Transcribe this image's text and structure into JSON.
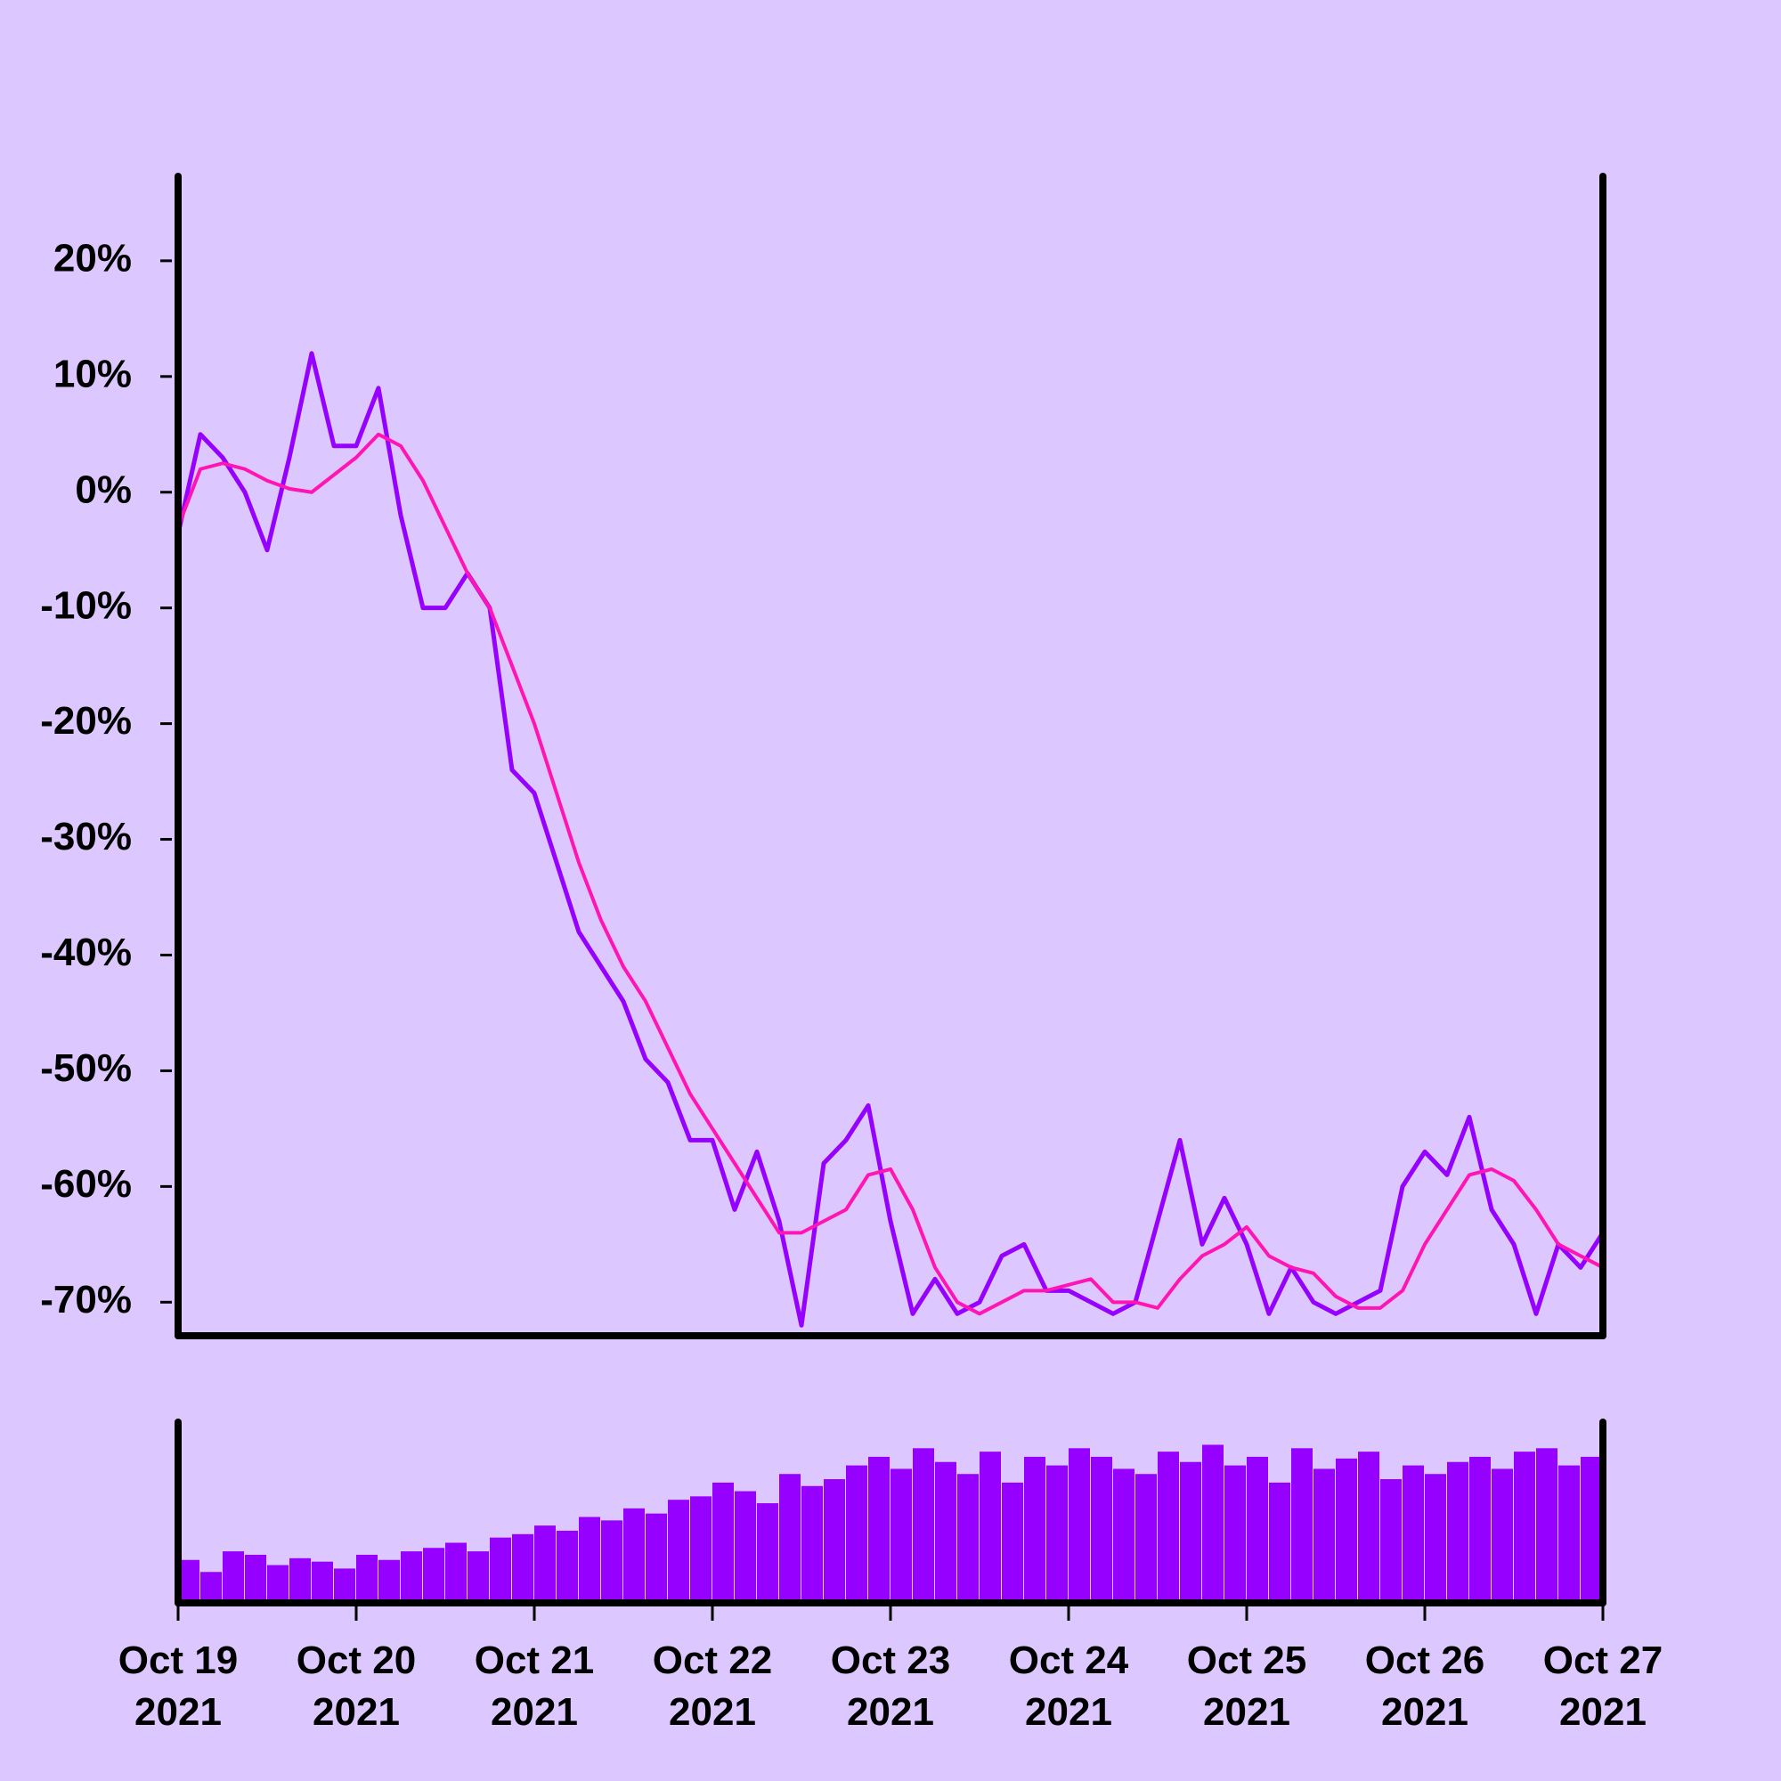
{
  "chart_data": {
    "type": "line",
    "x": [
      0,
      0.125,
      0.25,
      0.375,
      0.5,
      0.625,
      0.75,
      0.875,
      1,
      1.125,
      1.25,
      1.375,
      1.5,
      1.625,
      1.75,
      1.875,
      2,
      2.125,
      2.25,
      2.375,
      2.5,
      2.625,
      2.75,
      2.875,
      3,
      3.125,
      3.25,
      3.375,
      3.5,
      3.625,
      3.75,
      3.875,
      4,
      4.125,
      4.25,
      4.375,
      4.5,
      4.625,
      4.75,
      4.875,
      5,
      5.125,
      5.25,
      5.375,
      5.5,
      5.625,
      5.75,
      5.875,
      6,
      6.125,
      6.25,
      6.375,
      6.5,
      6.625,
      6.75,
      6.875,
      7,
      7.125,
      7.25,
      7.375,
      7.5,
      7.625,
      7.75,
      7.875,
      8
    ],
    "series": [
      {
        "color": "#9500ff",
        "values": [
          -3.6,
          5,
          3,
          0,
          -5,
          3,
          12,
          4,
          4,
          9,
          -2,
          -10,
          -10,
          -7,
          -10,
          -24,
          -26,
          -32,
          -38,
          -41,
          -44,
          -49,
          -51,
          -56,
          -56,
          -62,
          -57,
          -63,
          -72,
          -58,
          -56,
          -53,
          -63,
          -71,
          -68,
          -71,
          -70,
          -66,
          -65,
          -69,
          -69,
          -70,
          -71,
          -70,
          -63,
          -56,
          -65,
          -61,
          -65,
          -71,
          -67,
          -70,
          -71,
          -70,
          -69,
          -60,
          -57,
          -59,
          -54,
          -62,
          -65,
          -71,
          -65,
          -67,
          -64
        ]
      },
      {
        "color": "#ff14b4",
        "values": [
          -3,
          2,
          2.5,
          2,
          1,
          0.3,
          0,
          1.5,
          3,
          5,
          4,
          1,
          -3,
          -7,
          -10,
          -15,
          -20,
          -26,
          -32,
          -37,
          -41,
          -44,
          -48,
          -52,
          -55,
          -58,
          -61,
          -64,
          -64,
          -63,
          -62,
          -59,
          -58.5,
          -62,
          -67,
          -70,
          -71,
          -70,
          -69,
          -69,
          -68.5,
          -68,
          -70,
          -70,
          -70.5,
          -68,
          -66,
          -65,
          -63.5,
          -66,
          -67,
          -67.5,
          -69.5,
          -70.5,
          -70.5,
          -69,
          -65,
          -62,
          -59,
          -58.5,
          -59.5,
          -62,
          -65,
          -66,
          -67
        ]
      }
    ],
    "volume": {
      "color": "#9500ff",
      "ylim": [
        0,
        100
      ],
      "values": [
        20,
        25,
        18,
        30,
        28,
        22,
        26,
        24,
        20,
        28,
        25,
        30,
        32,
        35,
        30,
        38,
        40,
        45,
        42,
        50,
        48,
        55,
        52,
        60,
        62,
        70,
        65,
        58,
        75,
        68,
        72,
        80,
        85,
        78,
        90,
        82,
        75,
        88,
        70,
        85,
        80,
        90,
        85,
        78,
        75,
        88,
        82,
        92,
        80,
        85,
        70,
        90,
        78,
        84,
        88,
        72,
        80,
        75,
        82,
        85,
        78,
        88,
        90,
        80,
        85
      ]
    },
    "xlim": [
      0,
      8
    ],
    "xticks": [
      {
        "value": 0,
        "label": "Oct 19\n2021"
      },
      {
        "value": 1,
        "label": "Oct 20\n2021"
      },
      {
        "value": 2,
        "label": "Oct 21\n2021"
      },
      {
        "value": 3,
        "label": "Oct 22\n2021"
      },
      {
        "value": 4,
        "label": "Oct 23\n2021"
      },
      {
        "value": 5,
        "label": "Oct 24\n2021"
      },
      {
        "value": 6,
        "label": "Oct 25\n2021"
      },
      {
        "value": 7,
        "label": "Oct 26\n2021"
      },
      {
        "value": 8,
        "label": "Oct 27\n2021"
      }
    ],
    "ylim": [
      -72.9,
      27.3
    ],
    "yticks": [
      {
        "value": 20,
        "label": "20%"
      },
      {
        "value": 10,
        "label": "10%"
      },
      {
        "value": 0,
        "label": "0%"
      },
      {
        "value": -10,
        "label": "-10%"
      },
      {
        "value": -20,
        "label": "-20%"
      },
      {
        "value": -30,
        "label": "-30%"
      },
      {
        "value": -40,
        "label": "-40%"
      },
      {
        "value": -50,
        "label": "-50%"
      },
      {
        "value": -60,
        "label": "-60%"
      },
      {
        "value": -70,
        "label": "-70%"
      }
    ]
  }
}
